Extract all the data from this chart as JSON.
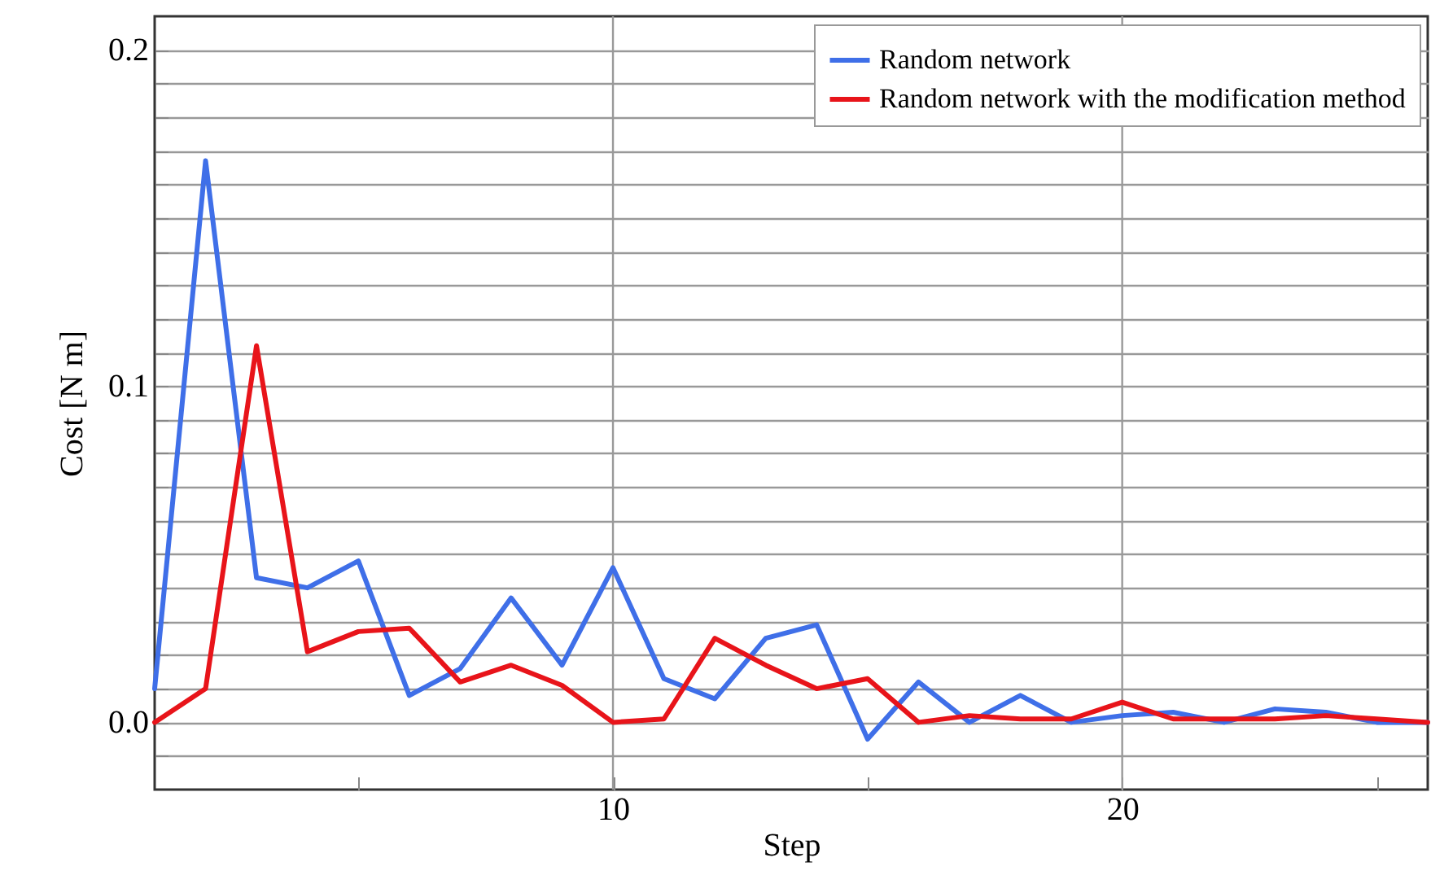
{
  "chart_data": {
    "type": "line",
    "xlabel": "Step",
    "ylabel": "Cost [N m]",
    "x": [
      1,
      2,
      3,
      4,
      5,
      6,
      7,
      8,
      9,
      10,
      11,
      12,
      13,
      14,
      15,
      16,
      17,
      18,
      19,
      20,
      21,
      22,
      23,
      24,
      25,
      26
    ],
    "series": [
      {
        "name": "Random network",
        "color": "#3f6fe8",
        "values": [
          0.01,
          0.167,
          0.043,
          0.04,
          0.048,
          0.008,
          0.016,
          0.037,
          0.017,
          0.046,
          0.013,
          0.007,
          0.025,
          0.029,
          -0.005,
          0.012,
          0.0,
          0.008,
          0.0,
          0.002,
          0.003,
          0.0,
          0.004,
          0.003,
          0.0,
          0.0
        ]
      },
      {
        "name": "Random network with the modification method",
        "color": "#e8141a",
        "values": [
          0.0,
          0.01,
          0.112,
          0.021,
          0.027,
          0.028,
          0.012,
          0.017,
          0.011,
          0.0,
          0.001,
          0.025,
          0.017,
          0.01,
          0.013,
          0.0,
          0.002,
          0.001,
          0.001,
          0.006,
          0.001,
          0.001,
          0.001,
          0.002,
          0.001,
          0.0
        ]
      }
    ],
    "xlim": [
      1,
      26
    ],
    "xticks": [
      {
        "value": 5,
        "label": null
      },
      10,
      {
        "value": 15,
        "label": null
      },
      20,
      {
        "value": 25,
        "label": null
      }
    ],
    "ylim": [
      -0.02,
      0.21
    ],
    "yticks": [
      {
        "value": -0.01,
        "label": null
      },
      {
        "value": 0,
        "label": "0.0"
      },
      {
        "value": 0.01,
        "label": null
      },
      {
        "value": 0.02,
        "label": null
      },
      {
        "value": 0.03,
        "label": null
      },
      {
        "value": 0.04,
        "label": null
      },
      {
        "value": 0.05,
        "label": null
      },
      {
        "value": 0.06,
        "label": null
      },
      {
        "value": 0.07,
        "label": null
      },
      {
        "value": 0.08,
        "label": null
      },
      {
        "value": 0.09,
        "label": null
      },
      0.1,
      {
        "value": 0.11,
        "label": null
      },
      {
        "value": 0.12,
        "label": null
      },
      {
        "value": 0.13,
        "label": null
      },
      {
        "value": 0.14,
        "label": null
      },
      {
        "value": 0.15,
        "label": null
      },
      {
        "value": 0.16,
        "label": null
      },
      {
        "value": 0.17,
        "label": null
      },
      {
        "value": 0.18,
        "label": null
      },
      {
        "value": 0.19,
        "label": null
      },
      0.2
    ],
    "grid": true,
    "legend": "top right",
    "marker": "none",
    "line_style": "solid"
  }
}
